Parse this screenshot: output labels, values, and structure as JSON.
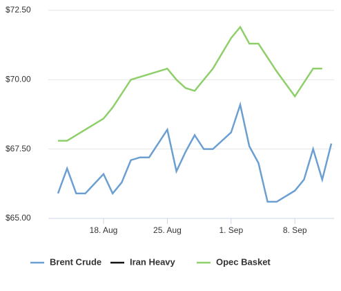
{
  "chart_data": {
    "type": "line",
    "x": [
      "13. Aug",
      "14. Aug",
      "15. Aug",
      "16. Aug",
      "18. Aug",
      "19. Aug",
      "20. Aug",
      "21. Aug",
      "22. Aug",
      "23. Aug",
      "25. Aug",
      "26. Aug",
      "27. Aug",
      "28. Aug",
      "29. Aug",
      "30. Aug",
      "1. Sep",
      "2. Sep",
      "3. Sep",
      "4. Sep",
      "5. Sep",
      "6. Sep",
      "8. Sep",
      "9. Sep",
      "10. Sep",
      "11. Sep",
      "12. Sep"
    ],
    "xticks": [
      "18. Aug",
      "25. Aug",
      "1. Sep",
      "8. Sep"
    ],
    "series": [
      {
        "name": "Brent Crude",
        "color": "#6b9fd1",
        "values": [
          65.9,
          66.8,
          65.9,
          65.9,
          66.6,
          65.9,
          66.3,
          67.1,
          67.2,
          67.2,
          68.2,
          66.7,
          67.4,
          68.0,
          67.5,
          67.5,
          68.1,
          69.1,
          67.6,
          67.0,
          65.6,
          65.6,
          66.0,
          66.4,
          67.5,
          66.4,
          67.7
        ]
      },
      {
        "name": "Iran Heavy",
        "color": "#111111",
        "values": [
          null,
          null,
          null,
          null,
          null,
          null,
          null,
          null,
          null,
          null,
          null,
          null,
          null,
          null,
          null,
          null,
          null,
          null,
          null,
          null,
          null,
          null,
          null,
          null,
          null,
          null,
          null
        ]
      },
      {
        "name": "Opec Basket",
        "color": "#8fcf6a",
        "values": [
          67.8,
          67.8,
          68.0,
          68.2,
          68.6,
          69.0,
          69.5,
          70.0,
          70.1,
          70.2,
          70.4,
          70.0,
          69.7,
          69.6,
          70.0,
          70.4,
          71.5,
          71.9,
          71.3,
          71.3,
          70.8,
          70.3,
          69.4,
          69.9,
          70.4,
          70.4,
          null
        ]
      }
    ],
    "ylim": [
      65,
      72.5
    ],
    "yticks": [
      {
        "value": 65,
        "label": "$65.00"
      },
      {
        "value": 67.5,
        "label": "$67.50"
      },
      {
        "value": 70,
        "label": "$70.00"
      },
      {
        "value": 72.5,
        "label": "$72.50"
      }
    ],
    "grid": true,
    "legend": "bottom"
  }
}
